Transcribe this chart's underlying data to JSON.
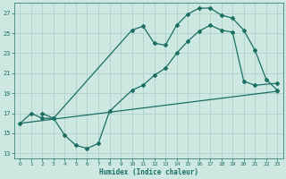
{
  "bg_color": "#cce8e0",
  "grid_color": "#aacec8",
  "line_color": "#1a6e64",
  "line_width": 0.9,
  "marker": "D",
  "marker_size": 2.0,
  "line1_x": [
    0,
    1,
    2,
    3,
    10,
    11,
    12,
    13,
    14,
    15,
    16,
    17,
    18,
    19,
    20,
    21,
    22,
    23
  ],
  "line1_y": [
    16.0,
    17.0,
    16.5,
    16.5,
    25.3,
    25.7,
    24.0,
    23.8,
    25.8,
    26.9,
    27.5,
    27.5,
    26.8,
    26.5,
    25.3,
    23.3,
    20.4,
    19.3
  ],
  "line2_x": [
    2,
    3,
    4,
    5,
    6,
    7,
    8,
    10,
    11,
    12,
    13,
    14,
    15,
    16,
    17,
    18,
    19,
    20,
    21,
    23
  ],
  "line2_y": [
    17.0,
    16.5,
    14.8,
    13.8,
    13.5,
    14.0,
    17.2,
    19.3,
    19.8,
    20.8,
    21.5,
    23.0,
    24.2,
    25.2,
    25.8,
    25.3,
    25.1,
    20.2,
    19.8,
    20.0
  ],
  "line3_x": [
    0,
    23
  ],
  "line3_y": [
    16.0,
    19.2
  ],
  "xlabel": "Humidex (Indice chaleur)",
  "xlim": [
    -0.5,
    23.5
  ],
  "ylim": [
    12.5,
    28.0
  ],
  "yticks": [
    13,
    15,
    17,
    19,
    21,
    23,
    25,
    27
  ],
  "xticks": [
    0,
    1,
    2,
    3,
    4,
    5,
    6,
    7,
    8,
    9,
    10,
    11,
    12,
    13,
    14,
    15,
    16,
    17,
    18,
    19,
    20,
    21,
    22,
    23
  ]
}
